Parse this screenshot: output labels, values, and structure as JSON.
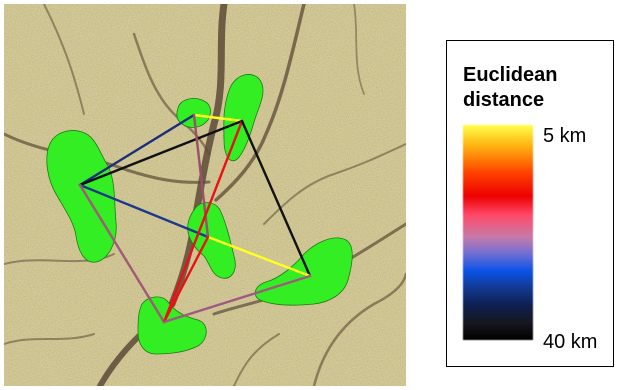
{
  "map": {
    "terrain_color": "#d8cf96",
    "river_color": "#5d4a36",
    "patch_color": "#33ee22",
    "patches": [
      {
        "id": "west"
      },
      {
        "id": "north-small"
      },
      {
        "id": "north-east"
      },
      {
        "id": "center"
      },
      {
        "id": "east"
      },
      {
        "id": "south"
      }
    ],
    "links": [
      {
        "from": "north-small",
        "to": "north-east",
        "color": "#ffff22"
      },
      {
        "from": "west",
        "to": "north-small",
        "color": "#1c2e7a"
      },
      {
        "from": "west",
        "to": "north-east",
        "color": "#101018"
      },
      {
        "from": "west",
        "to": "center",
        "color": "#1c3a8a"
      },
      {
        "from": "west",
        "to": "south",
        "color": "#a05a78"
      },
      {
        "from": "north-small",
        "to": "center",
        "color": "#9a4f6a"
      },
      {
        "from": "north-east",
        "to": "south",
        "color": "#e8101a"
      },
      {
        "from": "north-east",
        "to": "east",
        "color": "#121212"
      },
      {
        "from": "center",
        "to": "east",
        "color": "#ffff22"
      },
      {
        "from": "center",
        "to": "south",
        "color": "#ee1010"
      },
      {
        "from": "south",
        "to": "east",
        "color": "#a05a80"
      }
    ]
  },
  "legend": {
    "title": "Euclidean distance",
    "min_label": "5 km",
    "max_label": "40 km"
  }
}
